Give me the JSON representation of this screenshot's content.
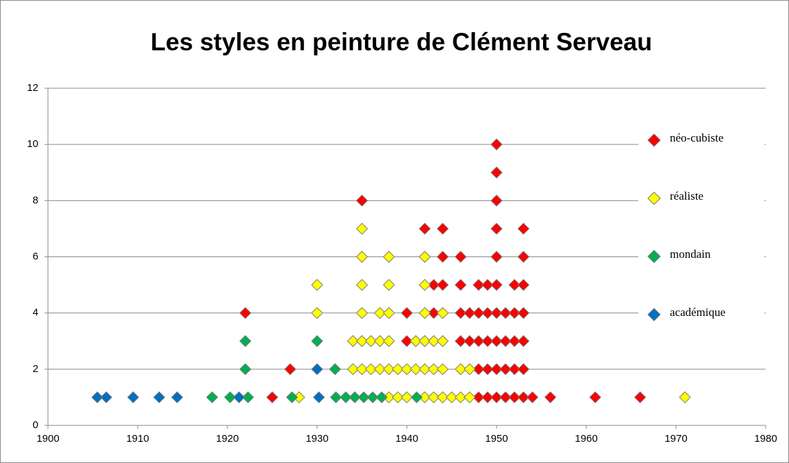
{
  "chart_data": {
    "type": "scatter",
    "title": "Les styles en peinture de Clément Serveau",
    "xlim": [
      1900,
      1980
    ],
    "xticks": [
      1900,
      1910,
      1920,
      1930,
      1940,
      1950,
      1960,
      1970,
      1980
    ],
    "ylim": [
      0,
      12
    ],
    "yticks": [
      0,
      2,
      4,
      6,
      8,
      10,
      12
    ],
    "grid": true,
    "legend": "right",
    "series": [
      {
        "name": "néo-cubiste",
        "color": "#ff0000",
        "x": [
          1925,
          1948,
          1949,
          1950,
          1951,
          1952,
          1953,
          1954,
          1956,
          1961,
          1966,
          1927,
          1948,
          1949,
          1950,
          1951,
          1952,
          1953,
          1940,
          1946,
          1947,
          1948,
          1949,
          1950,
          1951,
          1952,
          1953,
          1922,
          1940,
          1943,
          1946,
          1947,
          1948,
          1949,
          1950,
          1951,
          1952,
          1953,
          1943,
          1944,
          1946,
          1948,
          1949,
          1950,
          1952,
          1953,
          1944,
          1946,
          1950,
          1953,
          1942,
          1944,
          1950,
          1953,
          1935,
          1950,
          1950,
          1950
        ],
        "y": [
          1,
          1,
          1,
          1,
          1,
          1,
          1,
          1,
          1,
          1,
          1,
          2,
          2,
          2,
          2,
          2,
          2,
          2,
          3,
          3,
          3,
          3,
          3,
          3,
          3,
          3,
          3,
          4,
          4,
          4,
          4,
          4,
          4,
          4,
          4,
          4,
          4,
          4,
          5,
          5,
          5,
          5,
          5,
          5,
          5,
          5,
          6,
          6,
          6,
          6,
          7,
          7,
          7,
          7,
          8,
          8,
          9,
          10
        ]
      },
      {
        "name": "réaliste",
        "color": "#ffff00",
        "x": [
          1928,
          1938,
          1939,
          1940,
          1942,
          1943,
          1944,
          1945,
          1946,
          1947,
          1971,
          1934,
          1935,
          1936,
          1937,
          1938,
          1939,
          1940,
          1941,
          1942,
          1943,
          1944,
          1946,
          1947,
          1934,
          1935,
          1936,
          1937,
          1938,
          1941,
          1942,
          1943,
          1944,
          1930,
          1935,
          1937,
          1938,
          1942,
          1944,
          1930,
          1935,
          1938,
          1942,
          1935,
          1938,
          1942,
          1935
        ],
        "y": [
          1,
          1,
          1,
          1,
          1,
          1,
          1,
          1,
          1,
          1,
          1,
          2,
          2,
          2,
          2,
          2,
          2,
          2,
          2,
          2,
          2,
          2,
          2,
          2,
          3,
          3,
          3,
          3,
          3,
          3,
          3,
          3,
          3,
          4,
          4,
          4,
          4,
          4,
          4,
          5,
          5,
          5,
          5,
          6,
          6,
          6,
          7
        ]
      },
      {
        "name": "mondain",
        "color": "#00b050",
        "x": [
          1918.3,
          1920.3,
          1922.3,
          1927.2,
          1932.1,
          1933.2,
          1934.2,
          1935.2,
          1936.2,
          1937.2,
          1941.1,
          1922,
          1932,
          1922,
          1930
        ],
        "y": [
          1,
          1,
          1,
          1,
          1,
          1,
          1,
          1,
          1,
          1,
          1,
          2,
          2,
          3,
          3
        ]
      },
      {
        "name": "académique",
        "color": "#0070c0",
        "x": [
          1905.5,
          1906.5,
          1909.5,
          1912.4,
          1914.4,
          1921.3,
          1930.2,
          1930
        ],
        "y": [
          1,
          1,
          1,
          1,
          1,
          1,
          1,
          2
        ]
      }
    ]
  }
}
